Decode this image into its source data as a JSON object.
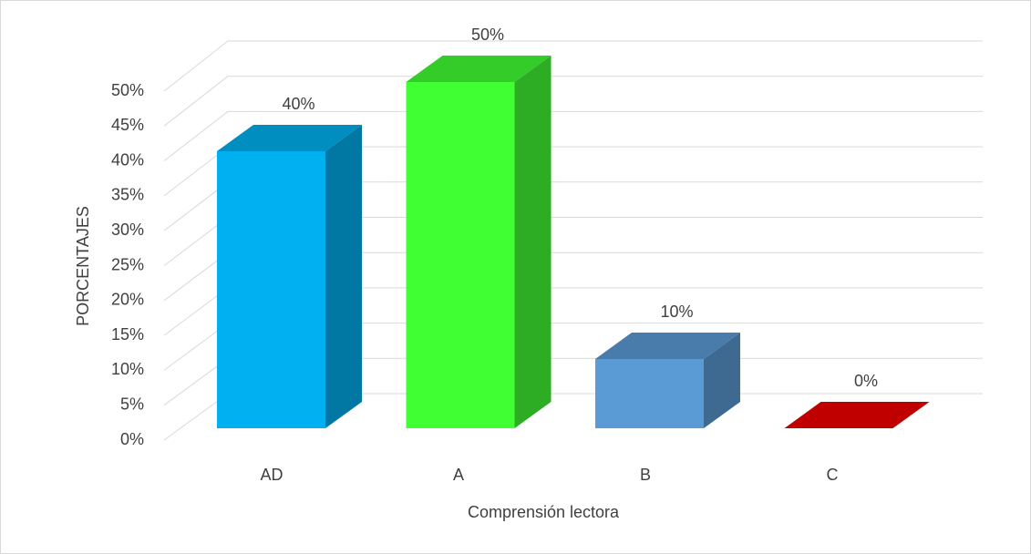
{
  "chart_data": {
    "type": "bar3d",
    "x_label": "Comprensión lectora",
    "y_label": "PORCENTAJES",
    "categories": [
      "AD",
      "A",
      "B",
      "C"
    ],
    "values": [
      40,
      50,
      10,
      0
    ],
    "value_labels": [
      "40%",
      "50%",
      "10%",
      "0%"
    ],
    "colors": [
      "#00b0f0",
      "#40ff33",
      "#5b9bd5",
      "#c00000"
    ],
    "ylim": [
      0,
      50
    ],
    "yticks": [
      {
        "value": 0,
        "label": "0%"
      },
      {
        "value": 5,
        "label": "5%"
      },
      {
        "value": 10,
        "label": "10%"
      },
      {
        "value": 15,
        "label": "15%"
      },
      {
        "value": 20,
        "label": "20%"
      },
      {
        "value": 25,
        "label": "25%"
      },
      {
        "value": 30,
        "label": "30%"
      },
      {
        "value": 35,
        "label": "35%"
      },
      {
        "value": 40,
        "label": "40%"
      },
      {
        "value": 45,
        "label": "45%"
      },
      {
        "value": 50,
        "label": "50%"
      }
    ],
    "grid": true
  }
}
